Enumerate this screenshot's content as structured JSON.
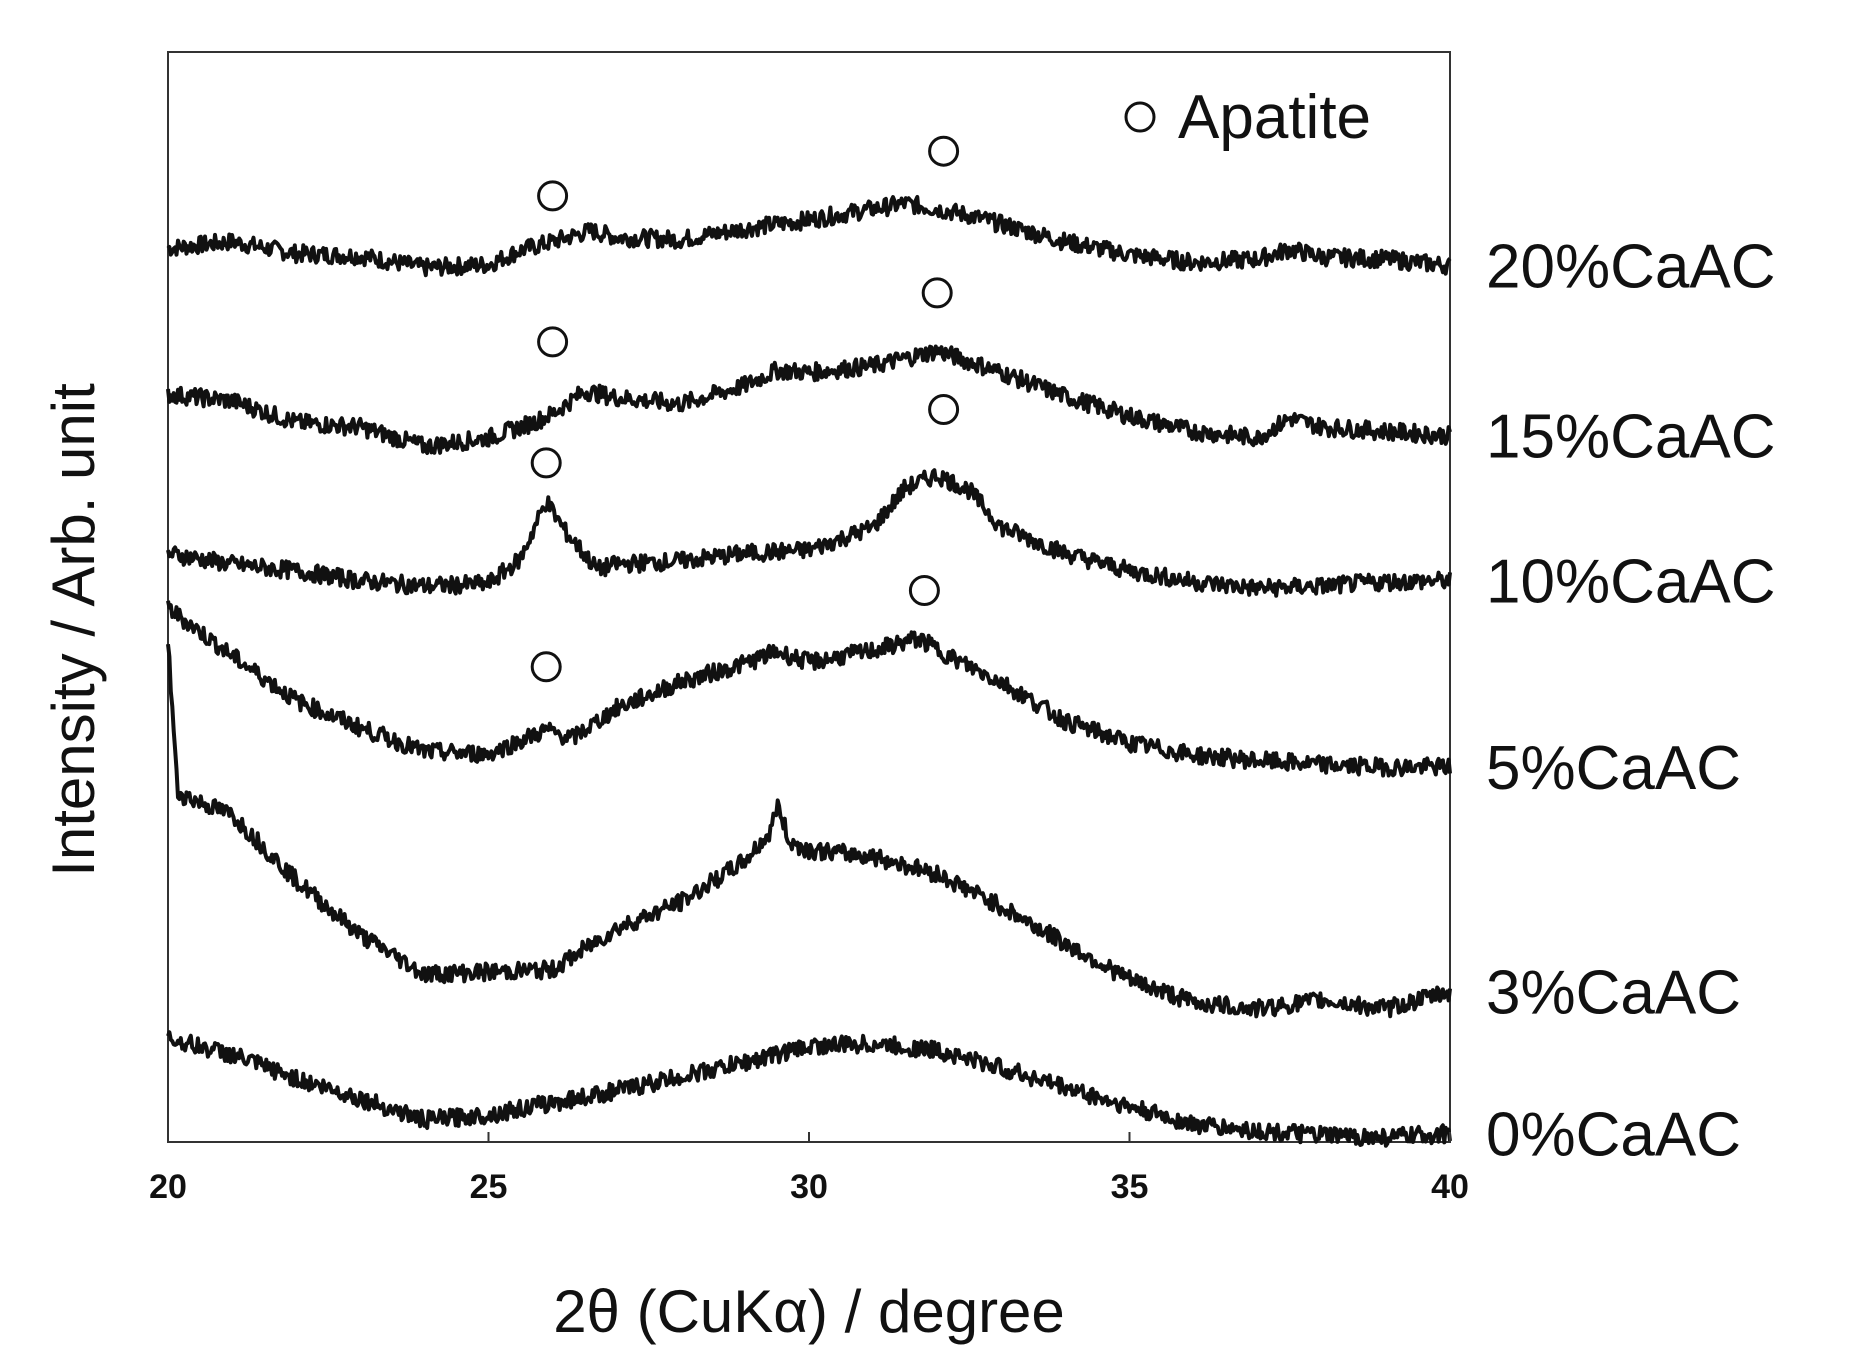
{
  "chart_data": {
    "type": "line",
    "xlabel": "2θ (CuKα) / degree",
    "ylabel": "Intensity / Arb. unit",
    "xlim": [
      20,
      40
    ],
    "ylim": [
      0,
      100
    ],
    "xticks": [
      "20",
      "25",
      "30",
      "35",
      "40"
    ],
    "grid": false,
    "legend": {
      "position": "top-right",
      "marker": "open-circle",
      "label": "Apatite"
    },
    "series": [
      {
        "name": "20%CaAC",
        "offset": 81,
        "points": [
          [
            20,
            1.0
          ],
          [
            21,
            1.6
          ],
          [
            22,
            0.5
          ],
          [
            23,
            0.3
          ],
          [
            24,
            -0.8
          ],
          [
            25,
            -0.5
          ],
          [
            25.5,
            0.8
          ],
          [
            26,
            1.6
          ],
          [
            26.6,
            2.6
          ],
          [
            27,
            2.0
          ],
          [
            28,
            1.8
          ],
          [
            29,
            2.8
          ],
          [
            30,
            3.6
          ],
          [
            31,
            4.6
          ],
          [
            31.5,
            5.1
          ],
          [
            32,
            4.6
          ],
          [
            32.5,
            4.0
          ],
          [
            33,
            3.2
          ],
          [
            34,
            1.6
          ],
          [
            35,
            0.4
          ],
          [
            36,
            -0.3
          ],
          [
            37,
            0.0
          ],
          [
            37.5,
            0.9
          ],
          [
            38,
            0.2
          ],
          [
            39,
            0.0
          ],
          [
            40,
            -0.6
          ]
        ]
      },
      {
        "name": "15%CaAC",
        "offset": 68,
        "points": [
          [
            20,
            0.6
          ],
          [
            21,
            0.0
          ],
          [
            22,
            -2.0
          ],
          [
            23,
            -2.4
          ],
          [
            24,
            -4.2
          ],
          [
            25,
            -3.4
          ],
          [
            25.7,
            -2.0
          ],
          [
            26,
            -1.2
          ],
          [
            26.5,
            0.9
          ],
          [
            27,
            0.3
          ],
          [
            28,
            -0.3
          ],
          [
            29,
            1.4
          ],
          [
            29.5,
            2.8
          ],
          [
            30,
            2.6
          ],
          [
            31,
            3.2
          ],
          [
            32,
            4.6
          ],
          [
            33,
            2.6
          ],
          [
            34,
            0.4
          ],
          [
            35,
            -1.4
          ],
          [
            36,
            -2.8
          ],
          [
            37,
            -3.4
          ],
          [
            37.5,
            -1.6
          ],
          [
            38,
            -2.4
          ],
          [
            39,
            -2.8
          ],
          [
            40,
            -3.2
          ]
        ]
      },
      {
        "name": "10%CaAC",
        "offset": 53,
        "points": [
          [
            20,
            1.0
          ],
          [
            21,
            0.0
          ],
          [
            22,
            -0.6
          ],
          [
            23,
            -1.5
          ],
          [
            24,
            -2.0
          ],
          [
            25,
            -1.8
          ],
          [
            25.5,
            0.5
          ],
          [
            25.9,
            5.8
          ],
          [
            26.2,
            3.0
          ],
          [
            26.7,
            -0.5
          ],
          [
            27,
            0.0
          ],
          [
            28,
            0.3
          ],
          [
            29,
            1.0
          ],
          [
            30,
            1.3
          ],
          [
            31,
            3.4
          ],
          [
            31.5,
            7.0
          ],
          [
            32,
            8.2
          ],
          [
            32.5,
            6.8
          ],
          [
            33,
            3.4
          ],
          [
            34,
            1.0
          ],
          [
            35,
            -0.6
          ],
          [
            36,
            -1.6
          ],
          [
            37,
            -2.2
          ],
          [
            38,
            -2.0
          ],
          [
            39,
            -1.6
          ],
          [
            40,
            -1.5
          ]
        ]
      },
      {
        "name": "5%CaAC",
        "offset": 36,
        "points": [
          [
            20,
            13.0
          ],
          [
            21,
            8.6
          ],
          [
            22,
            4.5
          ],
          [
            23,
            2.0
          ],
          [
            24,
            -0.2
          ],
          [
            25,
            -0.4
          ],
          [
            25.9,
            1.8
          ],
          [
            26.3,
            1.0
          ],
          [
            27,
            3.8
          ],
          [
            28,
            6.2
          ],
          [
            29,
            7.9
          ],
          [
            29.5,
            9.0
          ],
          [
            30,
            8.0
          ],
          [
            31,
            9.1
          ],
          [
            31.7,
            10.2
          ],
          [
            32.3,
            8.2
          ],
          [
            33,
            6.2
          ],
          [
            34,
            2.6
          ],
          [
            35,
            0.6
          ],
          [
            36,
            -0.5
          ],
          [
            37,
            -1.0
          ],
          [
            38,
            -1.4
          ],
          [
            39,
            -1.6
          ],
          [
            40,
            -1.6
          ]
        ]
      },
      {
        "name": "3%CaAC",
        "offset": 13,
        "points": [
          [
            20,
            33.0
          ],
          [
            20.15,
            19.0
          ],
          [
            21,
            17.0
          ],
          [
            22,
            11.0
          ],
          [
            23,
            6.0
          ],
          [
            24,
            2.4
          ],
          [
            25,
            2.6
          ],
          [
            26,
            2.8
          ],
          [
            27,
            6.6
          ],
          [
            28,
            9.0
          ],
          [
            29,
            12.8
          ],
          [
            29.4,
            15.4
          ],
          [
            29.5,
            18.0
          ],
          [
            29.7,
            14.5
          ],
          [
            30,
            13.8
          ],
          [
            31,
            13.2
          ],
          [
            32,
            11.6
          ],
          [
            33,
            8.6
          ],
          [
            34,
            5.2
          ],
          [
            35,
            1.9
          ],
          [
            36,
            -0.2
          ],
          [
            37,
            -0.8
          ],
          [
            38,
            0.0
          ],
          [
            39,
            -0.8
          ],
          [
            40,
            0.8
          ]
        ]
      },
      {
        "name": "0%CaAC",
        "offset": 0,
        "points": [
          [
            20,
            9.5
          ],
          [
            21,
            8.0
          ],
          [
            22,
            5.8
          ],
          [
            23,
            4.0
          ],
          [
            24,
            2.0
          ],
          [
            25,
            2.5
          ],
          [
            26,
            3.6
          ],
          [
            27,
            4.7
          ],
          [
            28,
            6.0
          ],
          [
            29,
            7.3
          ],
          [
            30,
            8.8
          ],
          [
            31,
            9.0
          ],
          [
            32,
            8.4
          ],
          [
            33,
            6.8
          ],
          [
            34,
            5.0
          ],
          [
            35,
            3.2
          ],
          [
            36,
            1.6
          ],
          [
            37,
            1.0
          ],
          [
            38,
            0.6
          ],
          [
            39,
            0.4
          ],
          [
            40,
            0.8
          ]
        ]
      }
    ],
    "apatite_markers": [
      {
        "x": 26.0,
        "y": 86.8
      },
      {
        "x": 32.1,
        "y": 90.9
      },
      {
        "x": 26.0,
        "y": 73.4
      },
      {
        "x": 32.0,
        "y": 77.9
      },
      {
        "x": 25.9,
        "y": 62.3
      },
      {
        "x": 32.1,
        "y": 67.2
      },
      {
        "x": 25.9,
        "y": 43.6
      },
      {
        "x": 31.8,
        "y": 50.6
      }
    ]
  }
}
